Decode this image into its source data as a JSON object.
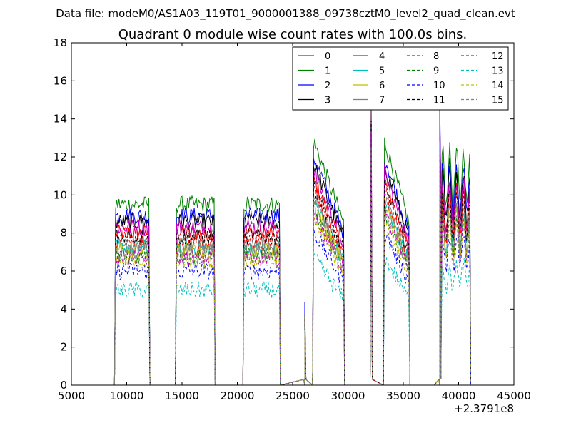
{
  "chart_data": {
    "type": "line",
    "title": "Quadrant 0 module wise count rates with 100.0s bins.",
    "subtitle": "Data file: modeM0/AS1A03_119T01_9000001388_09738cztM0_level2_quad_clean.evt",
    "xlabel": "",
    "ylabel": "",
    "x_offset_label": "+2.3791e8",
    "xlim": [
      5000,
      45000
    ],
    "ylim": [
      0,
      18
    ],
    "xticks": [
      "5000",
      "10000",
      "15000",
      "20000",
      "25000",
      "30000",
      "35000",
      "40000",
      "45000"
    ],
    "yticks": [
      "0",
      "2",
      "4",
      "6",
      "8",
      "10",
      "12",
      "14",
      "16",
      "18"
    ],
    "grid": false,
    "legend_position": "top-right",
    "segments": [
      {
        "x": [
          9000,
          12000
        ],
        "zero_after": [
          12200,
          14400
        ]
      },
      {
        "x": [
          14500,
          17900
        ],
        "zero_after": [
          18100,
          20500
        ]
      },
      {
        "x": [
          20600,
          23800
        ],
        "zero_after": [
          24000,
          26100
        ]
      },
      {
        "x": [
          26900,
          29600
        ],
        "zero_after": [
          29700,
          32000
        ]
      },
      {
        "x": [
          33300,
          35500
        ],
        "zero_after": [
          35700,
          37800
        ]
      },
      {
        "x": [
          38400,
          41000
        ]
      }
    ],
    "events": [
      {
        "x": 26100,
        "scale": 0.45
      },
      {
        "x": 32100,
        "scale": 1.75
      },
      {
        "x": 38300,
        "scale": 1.6
      }
    ],
    "series": [
      {
        "name": "0",
        "color": "#ff0000",
        "style": "solid",
        "level": 8.0
      },
      {
        "name": "1",
        "color": "#008000",
        "style": "solid",
        "level": 9.5
      },
      {
        "name": "2",
        "color": "#0000ff",
        "style": "solid",
        "level": 8.9
      },
      {
        "name": "3",
        "color": "#000000",
        "style": "solid",
        "level": 8.6
      },
      {
        "name": "4",
        "color": "#bf00bf",
        "style": "solid",
        "level": 8.3
      },
      {
        "name": "5",
        "color": "#00bfbf",
        "style": "solid",
        "level": 7.2
      },
      {
        "name": "6",
        "color": "#bfbf00",
        "style": "solid",
        "level": 7.1
      },
      {
        "name": "7",
        "color": "#808080",
        "style": "solid",
        "level": 7.4
      },
      {
        "name": "8",
        "color": "#ff0000",
        "style": "dashed",
        "level": 7.6
      },
      {
        "name": "9",
        "color": "#008000",
        "style": "dashed",
        "level": 6.8
      },
      {
        "name": "10",
        "color": "#0000ff",
        "style": "dashed",
        "level": 6.0
      },
      {
        "name": "11",
        "color": "#000000",
        "style": "dashed",
        "level": 7.8
      },
      {
        "name": "12",
        "color": "#bf00bf",
        "style": "dashed",
        "level": 6.7
      },
      {
        "name": "13",
        "color": "#00bfbf",
        "style": "dashed",
        "level": 5.0
      },
      {
        "name": "14",
        "color": "#bfbf00",
        "style": "dashed",
        "level": 6.5
      },
      {
        "name": "15",
        "color": "#808080",
        "style": "dashed",
        "level": 7.0
      }
    ]
  }
}
